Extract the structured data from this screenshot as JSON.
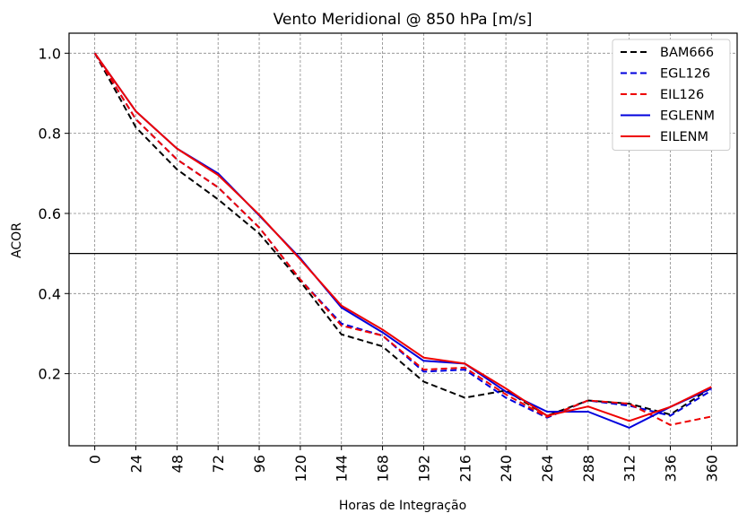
{
  "chart_data": {
    "type": "line",
    "title": "Vento Meridional @ 850 hPa [m/s]",
    "xlabel": "Horas de Integração",
    "ylabel": "ACOR",
    "x": [
      0,
      24,
      48,
      72,
      96,
      120,
      144,
      168,
      192,
      216,
      240,
      264,
      288,
      312,
      336,
      360
    ],
    "xticks": [
      "0",
      "24",
      "48",
      "72",
      "96",
      "120",
      "144",
      "168",
      "192",
      "216",
      "240",
      "264",
      "288",
      "312",
      "336",
      "360"
    ],
    "yticks": [
      "0.2",
      "0.4",
      "0.6",
      "0.8",
      "1.0"
    ],
    "ylim": [
      0.02,
      1.05
    ],
    "reference_line_y": 0.5,
    "grid": true,
    "legend_position": "top-right",
    "series": [
      {
        "name": "BAM666",
        "color": "#000000",
        "style": "dashed",
        "values": [
          1.0,
          0.815,
          0.71,
          0.635,
          0.55,
          0.43,
          0.298,
          0.268,
          0.18,
          0.14,
          0.158,
          0.095,
          0.133,
          0.125,
          0.098,
          0.165
        ]
      },
      {
        "name": "EGL126",
        "color": "#0000dd",
        "style": "dashed",
        "values": [
          1.0,
          0.835,
          0.735,
          0.665,
          0.565,
          0.435,
          0.325,
          0.295,
          0.205,
          0.21,
          0.14,
          0.09,
          0.133,
          0.12,
          0.095,
          0.158
        ]
      },
      {
        "name": "EIL126",
        "color": "#ee0000",
        "style": "dashed",
        "values": [
          1.0,
          0.835,
          0.735,
          0.665,
          0.565,
          0.435,
          0.32,
          0.295,
          0.21,
          0.215,
          0.148,
          0.092,
          0.133,
          0.125,
          0.072,
          0.093
        ]
      },
      {
        "name": "EGLENM",
        "color": "#0000dd",
        "style": "solid",
        "values": [
          1.0,
          0.855,
          0.762,
          0.7,
          0.595,
          0.488,
          0.365,
          0.303,
          0.232,
          0.225,
          0.155,
          0.105,
          0.105,
          0.065,
          0.117,
          0.163
        ]
      },
      {
        "name": "EILENM",
        "color": "#ee0000",
        "style": "solid",
        "values": [
          1.0,
          0.855,
          0.762,
          0.696,
          0.597,
          0.485,
          0.37,
          0.31,
          0.24,
          0.225,
          0.163,
          0.095,
          0.118,
          0.082,
          0.117,
          0.167
        ]
      }
    ]
  }
}
